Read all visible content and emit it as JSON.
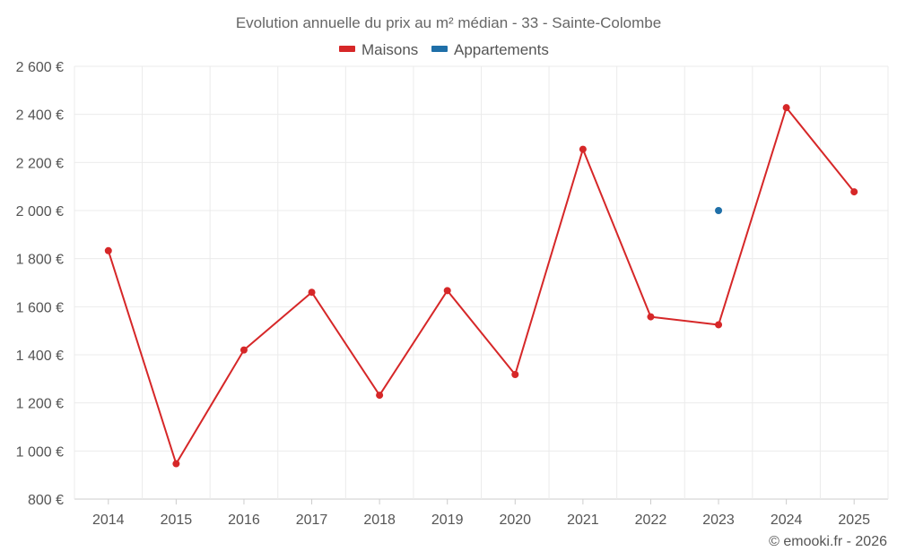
{
  "chart_data": {
    "type": "line",
    "title": "Evolution annuelle du prix au m² médian - 33 - Sainte-Colombe",
    "categories": [
      "2014",
      "2015",
      "2016",
      "2017",
      "2018",
      "2019",
      "2020",
      "2021",
      "2022",
      "2023",
      "2024",
      "2025"
    ],
    "series": [
      {
        "name": "Maisons",
        "color": "#d62728",
        "values": [
          1833,
          947,
          1420,
          1660,
          1232,
          1667,
          1318,
          2255,
          1558,
          1525,
          2428,
          2078
        ]
      },
      {
        "name": "Appartements",
        "color": "#1f6fa8",
        "values": [
          null,
          null,
          null,
          null,
          null,
          null,
          null,
          null,
          null,
          2000,
          null,
          null
        ]
      }
    ],
    "ylim": [
      800,
      2600
    ],
    "yticks": [
      800,
      1000,
      1200,
      1400,
      1600,
      1800,
      2000,
      2200,
      2400,
      2600
    ],
    "ytick_labels": [
      "800 €",
      "1 000 €",
      "1 200 €",
      "1 400 €",
      "1 600 €",
      "1 800 €",
      "2 000 €",
      "2 200 €",
      "2 400 €",
      "2 600 €"
    ],
    "xlabel": "",
    "ylabel": "",
    "grid": true,
    "legend_position": "top-center"
  },
  "credit": "© emooki.fr - 2026"
}
